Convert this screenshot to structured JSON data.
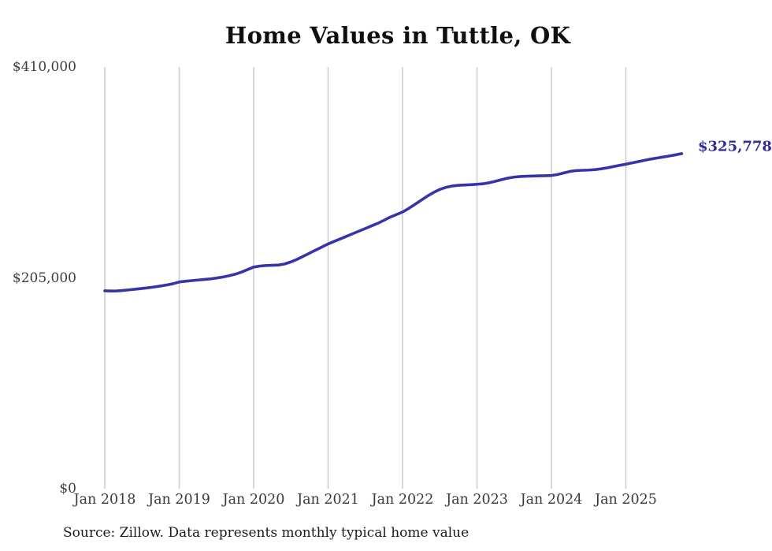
{
  "page": {
    "background_color": "#ffffff"
  },
  "footer": {
    "source": "Source: Zillow. Data represents monthly typical home value"
  },
  "chart_data": {
    "type": "line",
    "title": "Home Values in Tuttle, OK",
    "xlabel": "",
    "ylabel": "",
    "ylim": [
      0,
      410000
    ],
    "grid": "vertical-only",
    "legend": "none",
    "frequency": "monthly",
    "x_start": "Jan 2018",
    "x_end": "Oct 2025",
    "x_tick_labels": [
      "Jan 2018",
      "Jan 2019",
      "Jan 2020",
      "Jan 2021",
      "Jan 2022",
      "Jan 2023",
      "Jan 2024",
      "Jan 2025"
    ],
    "y_tick_labels": [
      "$410,000",
      "$205,000",
      "$0"
    ],
    "y_tick_values": [
      410000,
      205000,
      0
    ],
    "end_label": "$325,778",
    "latest_value": 325778,
    "colors": {
      "line": "#3634a8",
      "end_label": "#2e2b9e",
      "grid": "#cbcbcb",
      "tick_text": "#3d3d3d",
      "title_text": "#0f0f0f"
    },
    "series": [
      {
        "name": "Typical home value",
        "values": [
          192400,
          192200,
          192300,
          192800,
          193400,
          194000,
          194700,
          195400,
          196200,
          197100,
          198100,
          199300,
          201000,
          201700,
          202300,
          202900,
          203400,
          204000,
          204800,
          205800,
          207000,
          208500,
          210500,
          213000,
          215500,
          216500,
          217000,
          217200,
          217500,
          218500,
          220500,
          223000,
          226000,
          229000,
          232000,
          235000,
          238000,
          240500,
          243000,
          245500,
          248000,
          250500,
          253000,
          255500,
          258000,
          261000,
          264000,
          266500,
          269000,
          272500,
          276500,
          280500,
          284500,
          288000,
          291000,
          293000,
          294300,
          295000,
          295300,
          295600,
          296000,
          296500,
          297500,
          299000,
          300500,
          302000,
          303000,
          303500,
          303800,
          304000,
          304200,
          304300,
          304500,
          305500,
          307000,
          308500,
          309300,
          309600,
          309800,
          310200,
          311000,
          312000,
          313200,
          314400,
          315500,
          316800,
          318000,
          319300,
          320500,
          321500,
          322500,
          323500,
          324600,
          325778
        ]
      }
    ]
  }
}
